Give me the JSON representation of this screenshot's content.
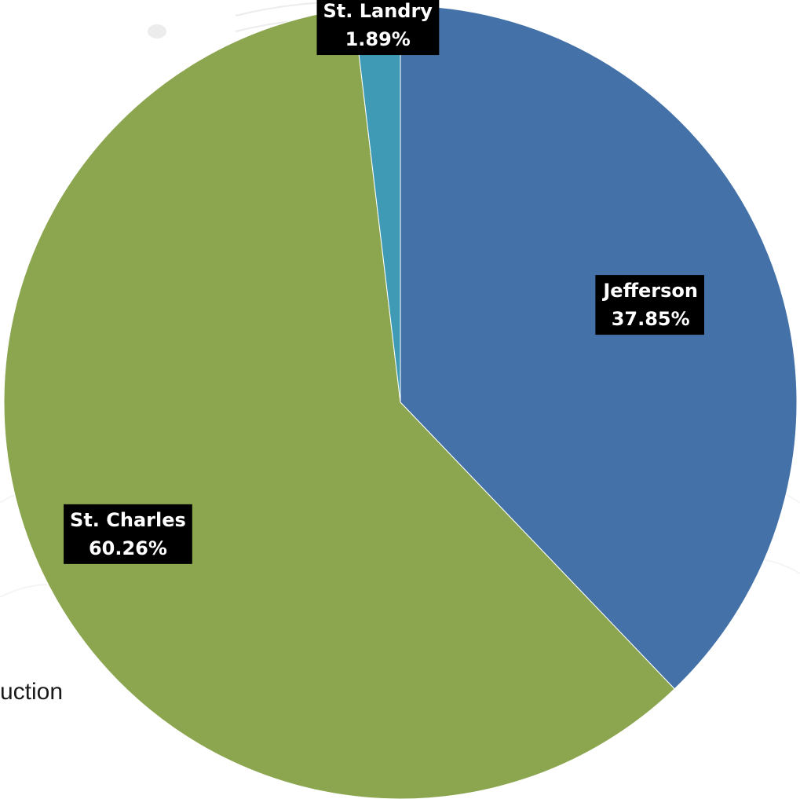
{
  "background": {
    "text_fragment": "uction"
  },
  "chart_data": {
    "type": "pie",
    "title": "",
    "start_angle_deg": 0,
    "direction": "clockwise",
    "slices": [
      {
        "label": "Jefferson",
        "value": 37.85,
        "value_text": "37.85%",
        "color": "#4472A8"
      },
      {
        "label": "St. Charles",
        "value": 60.26,
        "value_text": "60.26%",
        "color": "#8BA64F"
      },
      {
        "label": "St. Landry",
        "value": 1.89,
        "value_text": "1.89%",
        "color": "#3F9BB5"
      }
    ],
    "legend": "none",
    "data_labels": "category-and-percent"
  }
}
